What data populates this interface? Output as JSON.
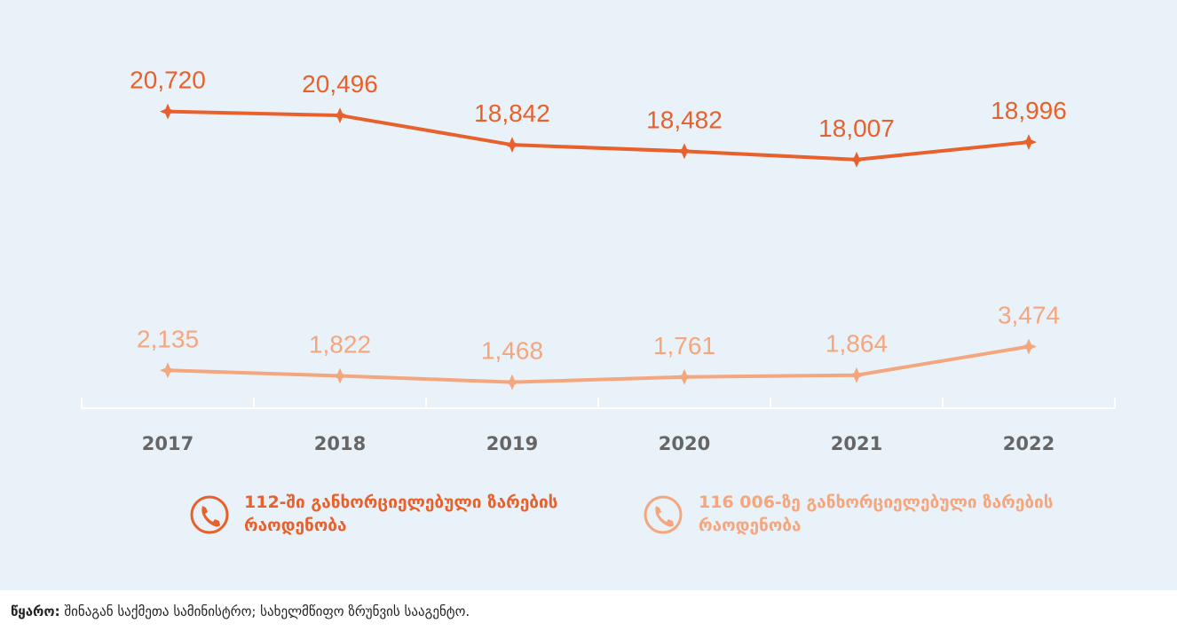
{
  "chart_data": {
    "type": "line",
    "categories": [
      "2017",
      "2018",
      "2019",
      "2020",
      "2021",
      "2022"
    ],
    "series": [
      {
        "name": "112-ში განხორციელებული ზარების რაოდენობა",
        "color": "#e8612c",
        "values": [
          20720,
          20496,
          18842,
          18482,
          18007,
          18996
        ],
        "value_labels": [
          "20,720",
          "20,496",
          "18,842",
          "18,482",
          "18,007",
          "18,996"
        ]
      },
      {
        "name": "116 006-ზე განხორციელებული ზარების რაოდენობა",
        "color": "#f4a67e",
        "axis": "y2",
        "values": [
          2135,
          1822,
          1468,
          1761,
          1864,
          3474
        ],
        "value_labels": [
          "2,135",
          "1,822",
          "1,468",
          "1,761",
          "1,864",
          "3,474"
        ]
      }
    ],
    "ylim": [
      4000,
      25000
    ],
    "y2lim": [
      0,
      21000
    ],
    "grid": false
  },
  "source": {
    "label": "წყარო:",
    "text": "შინაგან საქმეთა სამინისტრო; სახელმწიფო ზრუნვის სააგენტო."
  }
}
